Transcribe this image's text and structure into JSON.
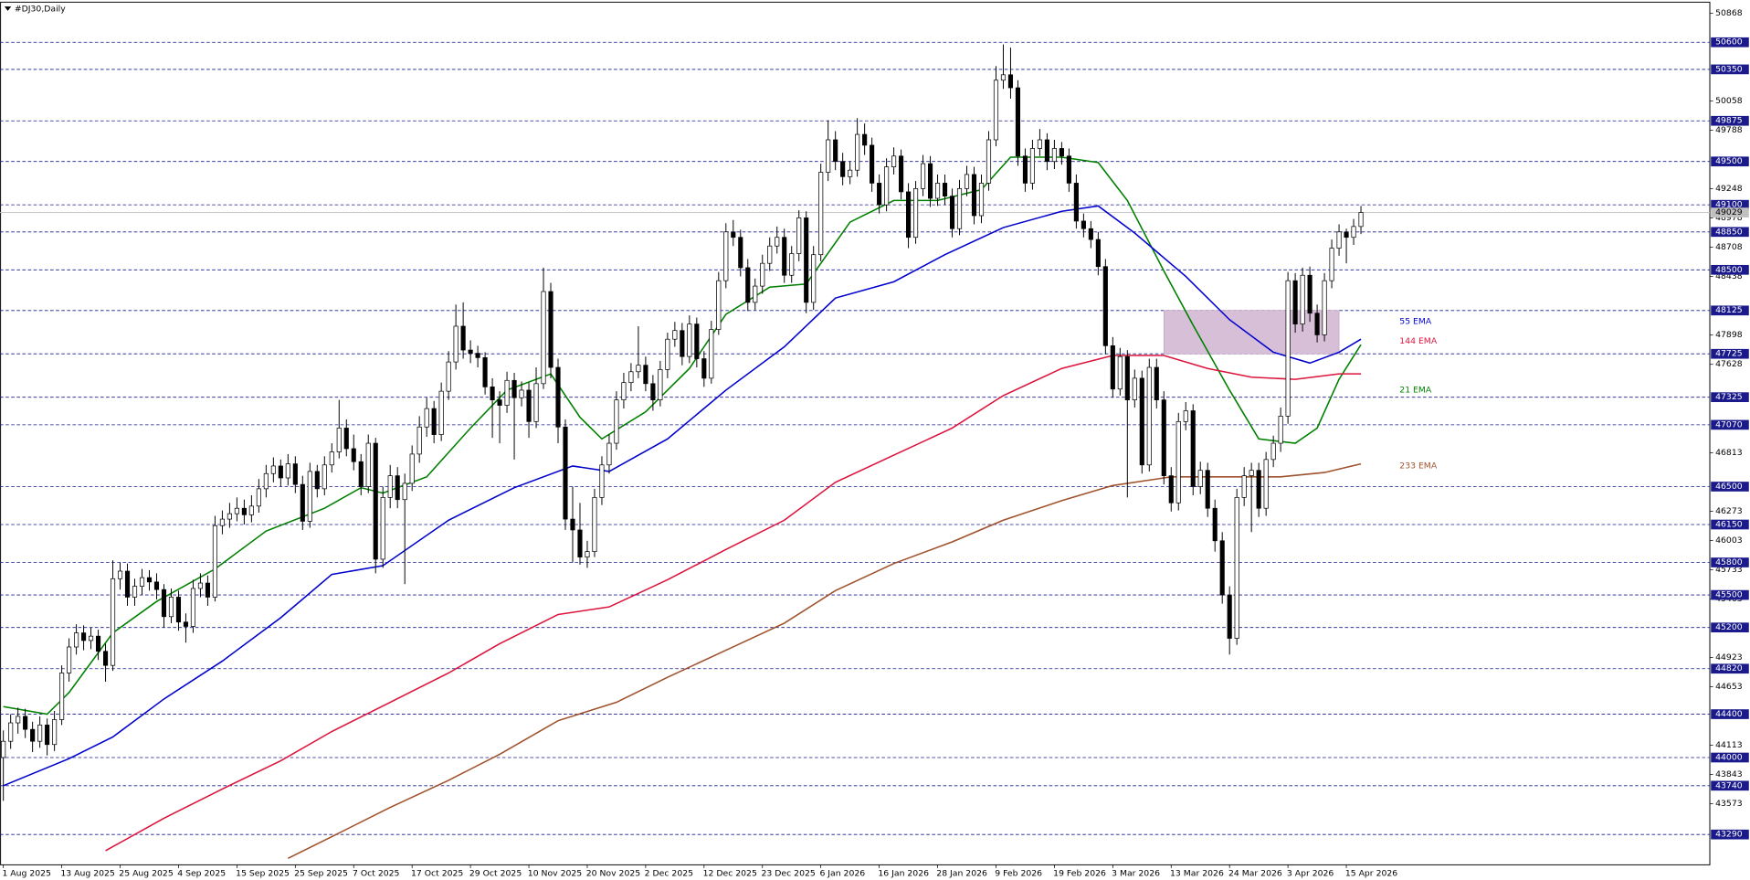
{
  "chart_data": {
    "type": "candlestick",
    "title": "#DJ30,Daily",
    "xlim": [
      -0.46,
      233.8
    ],
    "ylim": [
      43010,
      50970
    ],
    "xticks": [
      {
        "value": 0,
        "label": "1 Aug 2025"
      },
      {
        "value": 8,
        "label": "13 Aug 2025"
      },
      {
        "value": 16,
        "label": "25 Aug 2025"
      },
      {
        "value": 24,
        "label": "4 Sep 2025"
      },
      {
        "value": 32,
        "label": "15 Sep 2025"
      },
      {
        "value": 40,
        "label": "25 Sep 2025"
      },
      {
        "value": 48,
        "label": "7 Oct 2025"
      },
      {
        "value": 56,
        "label": "17 Oct 2025"
      },
      {
        "value": 64,
        "label": "29 Oct 2025"
      },
      {
        "value": 72,
        "label": "10 Nov 2025"
      },
      {
        "value": 80,
        "label": "20 Nov 2025"
      },
      {
        "value": 88,
        "label": "2 Dec 2025"
      },
      {
        "value": 96,
        "label": "12 Dec 2025"
      },
      {
        "value": 104,
        "label": "23 Dec 2025"
      },
      {
        "value": 112,
        "label": "6 Jan 2026"
      },
      {
        "value": 120,
        "label": "16 Jan 2026"
      },
      {
        "value": 128,
        "label": "28 Jan 2026"
      },
      {
        "value": 136,
        "label": "9 Feb 2026"
      },
      {
        "value": 144,
        "label": "19 Feb 2026"
      },
      {
        "value": 152,
        "label": "3 Mar 2026"
      },
      {
        "value": 160,
        "label": "13 Mar 2026"
      },
      {
        "value": 168,
        "label": "24 Mar 2026"
      },
      {
        "value": 176,
        "label": "3 Apr 2026"
      },
      {
        "value": 184,
        "label": "15 Apr 2026"
      }
    ],
    "yticks": [
      50868,
      50058,
      49788,
      49248,
      48978,
      48708,
      48438,
      47898,
      47628,
      46813,
      46273,
      46003,
      45733,
      45463,
      44923,
      44653,
      44113,
      43843,
      43573
    ],
    "levels": [
      50600,
      50350,
      49875,
      49500,
      49100,
      48850,
      48500,
      48125,
      47725,
      47325,
      47070,
      46500,
      46150,
      45800,
      45500,
      45200,
      44820,
      44400,
      44000,
      43740,
      43290
    ],
    "level_color": "#1a1a8c",
    "up_color": "#ffffff",
    "down_color": "#000000",
    "price_line_color": "#c0c0c0",
    "candles": {
      "open": [
        44000,
        44150,
        44320,
        44380,
        44260,
        44150,
        44300,
        44120,
        44350,
        44780,
        45020,
        45150,
        45080,
        45120,
        44980,
        44850,
        45650,
        45720,
        45480,
        45580,
        45660,
        45620,
        45550,
        45300,
        45480,
        45250,
        45210,
        45560,
        45610,
        45480,
        46140,
        46200,
        46250,
        46300,
        46240,
        46320,
        46480,
        46620,
        46690,
        46580,
        46710,
        46520,
        46180,
        46640,
        46480,
        46700,
        46820,
        47040,
        46850,
        46730,
        46500,
        46900,
        45830,
        46400,
        46600,
        46380,
        46530,
        46800,
        47050,
        47220,
        46980,
        47380,
        47650,
        47980,
        47760,
        47730,
        47690,
        47420,
        47300,
        47250,
        47480,
        47320,
        47390,
        47100,
        47450,
        48300,
        47600,
        47050,
        46200,
        46100,
        45850,
        45900,
        46400,
        46700,
        46900,
        47300,
        47460,
        47560,
        47620,
        47450,
        47300,
        47580,
        47860,
        47940,
        47700,
        48000,
        47680,
        47500,
        47950,
        48400,
        48850,
        48800,
        48520,
        48200,
        48350,
        48560,
        48720,
        48800,
        48450,
        48650,
        48980,
        48200,
        48640,
        49400,
        49700,
        49500,
        49360,
        49420,
        49750,
        49650,
        49300,
        49100,
        49450,
        49550,
        49220,
        48800,
        49250,
        49480,
        49160,
        49300,
        49180,
        48880,
        49250,
        49380,
        49000,
        49300,
        49700,
        50250,
        50300,
        50180,
        49550,
        49300,
        49620,
        49700,
        49500,
        49620,
        49550,
        49300,
        48950,
        48880,
        48780,
        48530,
        47800,
        47400,
        47700,
        47300,
        47500,
        46700,
        47600,
        47300,
        46600,
        46350,
        47100,
        47200,
        46500,
        46650,
        46300,
        46000,
        45500,
        45100,
        46400,
        46600,
        46650,
        46300,
        46750,
        46900,
        47150,
        48400,
        48000,
        48450,
        48100,
        47900,
        48400,
        48700,
        48850,
        48800,
        48900
      ],
      "high": [
        44250,
        44400,
        44460,
        44450,
        44330,
        44380,
        44360,
        44430,
        44850,
        45100,
        45230,
        45220,
        45200,
        45180,
        45050,
        45820,
        45800,
        45790,
        45650,
        45740,
        45730,
        45700,
        45600,
        45560,
        45540,
        45330,
        45640,
        45700,
        45680,
        46230,
        46280,
        46350,
        46400,
        46380,
        46420,
        46570,
        46700,
        46770,
        46750,
        46800,
        46780,
        46600,
        46720,
        46700,
        46780,
        46900,
        47300,
        47120,
        46980,
        46800,
        46980,
        46950,
        46500,
        46700,
        46680,
        46620,
        46880,
        47150,
        47320,
        47290,
        47460,
        47750,
        48180,
        48200,
        47850,
        47800,
        47740,
        47500,
        47380,
        47560,
        47550,
        47470,
        47460,
        47600,
        48520,
        48380,
        47680,
        47120,
        46500,
        46350,
        46000,
        46480,
        46780,
        46980,
        47380,
        47550,
        47640,
        47980,
        47700,
        47530,
        47660,
        47920,
        48020,
        48010,
        48080,
        48060,
        47750,
        48030,
        48480,
        48930,
        48960,
        48870,
        48600,
        48420,
        48640,
        48800,
        48900,
        48880,
        48720,
        49050,
        49040,
        48720,
        49480,
        49880,
        49780,
        49580,
        49500,
        49900,
        49850,
        49720,
        49380,
        49530,
        49630,
        49610,
        49300,
        49320,
        49560,
        49550,
        49380,
        49380,
        49250,
        49330,
        49460,
        49450,
        49380,
        49780,
        50380,
        50580,
        50550,
        50250,
        49620,
        49700,
        49800,
        49760,
        49700,
        49680,
        49620,
        49380,
        49020,
        48950,
        48850,
        48600,
        47880,
        47780,
        47760,
        47580,
        47570,
        47680,
        47680,
        47380,
        46680,
        47180,
        47280,
        47260,
        46730,
        46720,
        46380,
        46080,
        45580,
        46480,
        46680,
        46720,
        46720,
        46820,
        46970,
        47230,
        48480,
        48470,
        48520,
        48530,
        48180,
        48470,
        48780,
        48920,
        48880,
        48970,
        49090
      ],
      "low": [
        43600,
        44080,
        44220,
        44180,
        44050,
        44090,
        44020,
        44060,
        44300,
        44700,
        44950,
        44990,
        45000,
        44900,
        44700,
        44800,
        45550,
        45400,
        45400,
        45500,
        45540,
        45460,
        45200,
        45240,
        45170,
        45060,
        45150,
        45480,
        45400,
        45440,
        46060,
        46120,
        46180,
        46150,
        46170,
        46260,
        46400,
        46540,
        46500,
        46510,
        46440,
        46100,
        46120,
        46400,
        46420,
        46630,
        46760,
        46780,
        46650,
        46420,
        46440,
        45700,
        45750,
        46300,
        46300,
        45600,
        46460,
        46720,
        46960,
        46900,
        46920,
        47300,
        47580,
        47680,
        47640,
        47600,
        47350,
        46950,
        46900,
        47180,
        46750,
        47240,
        46950,
        47040,
        47400,
        47500,
        46900,
        46100,
        45800,
        45780,
        45750,
        45850,
        46330,
        46620,
        46840,
        47220,
        47380,
        47500,
        47380,
        47200,
        47240,
        47500,
        47790,
        47620,
        47640,
        47600,
        47420,
        47450,
        47900,
        48330,
        48720,
        48440,
        48120,
        48130,
        48280,
        48490,
        48650,
        48380,
        48380,
        48580,
        48100,
        48130,
        48580,
        49320,
        49420,
        49280,
        49290,
        49360,
        49560,
        49220,
        49020,
        49040,
        49380,
        49150,
        48700,
        48740,
        49180,
        49080,
        49090,
        49100,
        48800,
        48820,
        49180,
        48920,
        48930,
        49230,
        49640,
        50170,
        50080,
        49460,
        49220,
        49240,
        49550,
        49420,
        49430,
        49470,
        49220,
        48880,
        48800,
        48700,
        48450,
        47720,
        47320,
        47340,
        46400,
        47230,
        46620,
        46640,
        47220,
        46520,
        46270,
        46280,
        47020,
        46420,
        46430,
        46220,
        45900,
        45420,
        44950,
        45040,
        46320,
        46080,
        46220,
        46230,
        46680,
        46820,
        47080,
        47920,
        47930,
        48020,
        47830,
        47840,
        48330,
        48630,
        48560,
        48730,
        48830
      ],
      "close": [
        44150,
        44320,
        44380,
        44260,
        44150,
        44300,
        44120,
        44350,
        44780,
        45020,
        45150,
        45080,
        45120,
        44980,
        44850,
        45650,
        45720,
        45480,
        45580,
        45660,
        45620,
        45550,
        45300,
        45480,
        45250,
        45210,
        45560,
        45610,
        45480,
        46140,
        46200,
        46250,
        46300,
        46240,
        46320,
        46480,
        46620,
        46690,
        46580,
        46710,
        46520,
        46180,
        46640,
        46480,
        46700,
        46820,
        47040,
        46850,
        46730,
        46500,
        46900,
        45830,
        46400,
        46600,
        46380,
        46530,
        46800,
        47050,
        47220,
        46980,
        47380,
        47650,
        47980,
        47760,
        47730,
        47690,
        47420,
        47300,
        47250,
        47480,
        47320,
        47390,
        47100,
        47450,
        48300,
        47600,
        47050,
        46200,
        46100,
        45850,
        45900,
        46400,
        46700,
        46900,
        47300,
        47460,
        47560,
        47620,
        47450,
        47300,
        47580,
        47860,
        47940,
        47700,
        48000,
        47680,
        47500,
        47950,
        48400,
        48850,
        48800,
        48520,
        48200,
        48350,
        48560,
        48720,
        48800,
        48450,
        48650,
        48980,
        48200,
        48640,
        49400,
        49700,
        49500,
        49360,
        49420,
        49750,
        49650,
        49300,
        49100,
        49450,
        49550,
        49220,
        48800,
        49250,
        49480,
        49160,
        49300,
        49180,
        48880,
        49250,
        49380,
        49000,
        49300,
        49700,
        50250,
        50300,
        50180,
        49550,
        49300,
        49620,
        49700,
        49500,
        49620,
        49550,
        49300,
        48950,
        48880,
        48780,
        48530,
        47800,
        47400,
        47700,
        47300,
        47500,
        46700,
        47600,
        47300,
        46600,
        46350,
        47100,
        47200,
        46500,
        46650,
        46300,
        46000,
        45500,
        45100,
        46400,
        46600,
        46650,
        46300,
        46750,
        46900,
        47150,
        48400,
        48000,
        48450,
        48100,
        47900,
        48400,
        48700,
        48850,
        48800,
        48900,
        49029
      ]
    },
    "series": [
      {
        "name": "21 EMA",
        "color": "#008000",
        "x": [
          0,
          6,
          9,
          15,
          21,
          29,
          36,
          44,
          49,
          52,
          58,
          64,
          69,
          75,
          79,
          82,
          88,
          94,
          99,
          105,
          110,
          116,
          122,
          128,
          134,
          138,
          145,
          150,
          154,
          159,
          163,
          168,
          172,
          177,
          180,
          183,
          186
        ],
        "values": [
          44470,
          44400,
          44600,
          45150,
          45440,
          45740,
          46090,
          46300,
          46490,
          46440,
          46590,
          47040,
          47390,
          47540,
          47140,
          46940,
          47190,
          47590,
          48090,
          48340,
          48370,
          48940,
          49140,
          49140,
          49240,
          49540,
          49540,
          49490,
          49140,
          48490,
          47990,
          47390,
          46940,
          46900,
          47040,
          47490,
          47810
        ]
      },
      {
        "name": "55 EMA",
        "color": "#0000cd",
        "x": [
          0,
          9,
          15,
          22,
          30,
          38,
          45,
          52,
          61,
          70,
          78,
          83,
          91,
          99,
          107,
          114,
          122,
          129,
          137,
          145,
          150,
          155,
          162,
          168,
          174,
          179,
          183,
          186
        ],
        "values": [
          43740,
          43990,
          44190,
          44540,
          44890,
          45290,
          45690,
          45770,
          46190,
          46490,
          46690,
          46640,
          46940,
          47390,
          47790,
          48240,
          48390,
          48640,
          48890,
          49040,
          49090,
          48840,
          48440,
          48040,
          47740,
          47640,
          47740,
          47860
        ]
      },
      {
        "name": "144 EMA",
        "color": "#dc143c",
        "x": [
          14,
          22,
          30,
          38,
          45,
          53,
          61,
          68,
          76,
          83,
          91,
          99,
          107,
          114,
          122,
          130,
          137,
          145,
          152,
          159,
          165,
          171,
          177,
          183,
          186
        ],
        "values": [
          43140,
          43440,
          43710,
          43970,
          44240,
          44510,
          44780,
          45050,
          45320,
          45390,
          45640,
          45920,
          46190,
          46540,
          46790,
          47040,
          47340,
          47590,
          47710,
          47710,
          47590,
          47510,
          47490,
          47540,
          47540
        ]
      },
      {
        "name": "233 EMA",
        "color": "#a0522d",
        "x": [
          39,
          45,
          53,
          61,
          68,
          76,
          84,
          91,
          99,
          107,
          114,
          122,
          130,
          137,
          145,
          152,
          160,
          168,
          175,
          181,
          186
        ],
        "values": [
          43070,
          43270,
          43540,
          43790,
          44030,
          44340,
          44510,
          44740,
          44990,
          45240,
          45540,
          45790,
          45990,
          46190,
          46370,
          46510,
          46590,
          46590,
          46590,
          46630,
          46710
        ]
      }
    ],
    "zones": [
      {
        "x": [
          159,
          183
        ],
        "y": [
          47725,
          48125
        ],
        "color": "#d8bfd8"
      }
    ]
  }
}
